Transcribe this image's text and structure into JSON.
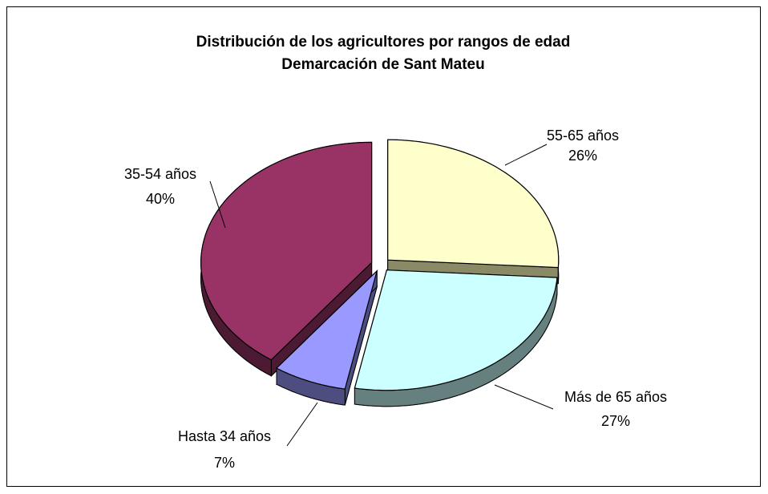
{
  "chart_data": {
    "type": "pie3d",
    "title": "Distribución de los agricultores por rangos de edad",
    "subtitle": "Demarcación de Sant Mateu",
    "categories": [
      "55-65 años",
      "Más de 65 años",
      "Hasta 34 años",
      "35-54 años"
    ],
    "values": [
      26,
      27,
      7,
      40
    ],
    "value_labels": [
      "26%",
      "27%",
      "7%",
      "40%"
    ],
    "colors": [
      "#ffffcc",
      "#ccffff",
      "#9999ff",
      "#993366"
    ],
    "side_colors": [
      "#8a8a66",
      "#668080",
      "#4d4d80",
      "#4d1a33"
    ]
  }
}
